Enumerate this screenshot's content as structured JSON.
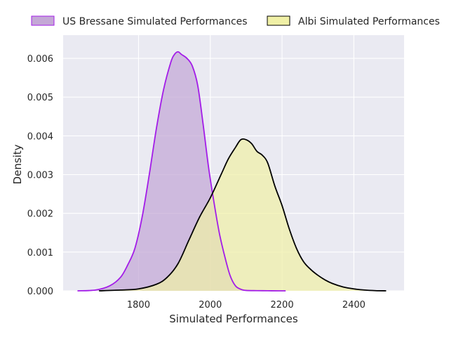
{
  "chart_data": {
    "type": "area",
    "title": "",
    "xlabel": "Simulated Performances",
    "ylabel": "Density",
    "xlim": [
      1590,
      2540
    ],
    "ylim": [
      0,
      0.0066
    ],
    "x_ticks": [
      1800,
      2000,
      2200,
      2400
    ],
    "x_tick_labels": [
      "1800",
      "2000",
      "2200",
      "2400"
    ],
    "y_ticks": [
      0,
      0.001,
      0.002,
      0.003,
      0.004,
      0.005,
      0.006
    ],
    "y_tick_labels": [
      "0.000",
      "0.001",
      "0.002",
      "0.003",
      "0.004",
      "0.005",
      "0.006"
    ],
    "grid": true,
    "background": "#eaeaf2",
    "legend_position": "top, outside plot area",
    "series": [
      {
        "name": "US Bressane Simulated Performances",
        "line_color": "#a31ce8",
        "fill_color": "#c4a8d6",
        "x": [
          1630,
          1680,
          1720,
          1750,
          1770,
          1790,
          1810,
          1830,
          1850,
          1870,
          1890,
          1900,
          1910,
          1920,
          1935,
          1950,
          1965,
          1980,
          1995,
          2010,
          2025,
          2040,
          2055,
          2070,
          2085,
          2100,
          2130,
          2160,
          2190,
          2210
        ],
        "y": [
          0.0,
          2e-05,
          0.00013,
          0.00035,
          0.00067,
          0.0011,
          0.0019,
          0.003,
          0.0042,
          0.0052,
          0.0059,
          0.0061,
          0.00617,
          0.0061,
          0.006,
          0.0058,
          0.0053,
          0.0043,
          0.0032,
          0.0023,
          0.0015,
          0.0009,
          0.0004,
          0.00013,
          4e-05,
          1e-05,
          5e-06,
          2e-06,
          5e-07,
          0.0
        ]
      },
      {
        "name": "Albi Simulated Performances",
        "line_color": "#000000",
        "fill_color": "#f0f0a6",
        "x": [
          1690,
          1750,
          1800,
          1850,
          1880,
          1910,
          1940,
          1970,
          2000,
          2030,
          2050,
          2070,
          2085,
          2100,
          2115,
          2130,
          2145,
          2160,
          2180,
          2200,
          2220,
          2240,
          2260,
          2280,
          2300,
          2320,
          2340,
          2370,
          2400,
          2430,
          2460,
          2490
        ],
        "y": [
          0.0,
          2e-05,
          5e-05,
          0.00017,
          0.00035,
          0.0007,
          0.0013,
          0.0019,
          0.0024,
          0.003,
          0.0034,
          0.0037,
          0.0039,
          0.0039,
          0.0038,
          0.0036,
          0.0035,
          0.0033,
          0.0027,
          0.0022,
          0.0016,
          0.0011,
          0.00075,
          0.00055,
          0.0004,
          0.00028,
          0.00019,
          0.0001,
          5e-05,
          2e-05,
          5e-06,
          0.0
        ]
      }
    ]
  }
}
